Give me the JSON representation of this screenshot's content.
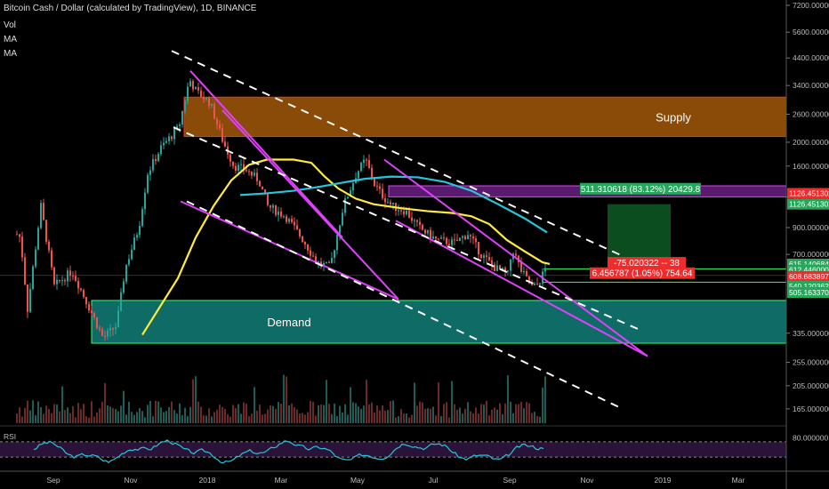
{
  "header": {
    "title": "Bitcoin Cash / Dollar (calculated by TradingView), 1D, BINANCE",
    "vol": "Vol",
    "ma1": "MA",
    "ma2": "MA"
  },
  "rsi_label": "RSI",
  "colors": {
    "up": "#26a69a",
    "down": "#ef5350",
    "ma_yellow": "#ffeb3b",
    "ma_cyan": "#26c6da",
    "trend": "#e040fb",
    "supply": "#8a4b08",
    "demand": "#0f6b66",
    "green_box": "#0b4d1f"
  },
  "chart_data": {
    "type": "candlestick",
    "title": "Bitcoin Cash / Dollar (calculated by TradingView), 1D, BINANCE",
    "yscale": "log",
    "ylim": [
      135,
      7200
    ],
    "y_ticks": [
      "7200.000000",
      "5600.000000",
      "4400.000000",
      "3400.000000",
      "2600.000000",
      "2000.000000",
      "1600.000000",
      "1200.000000",
      "900.000000",
      "700.000000",
      "335.000000",
      "255.000000",
      "205.000000",
      "165.000000"
    ],
    "x_ticks": [
      "Sep",
      "Nov",
      "2018",
      "Mar",
      "May",
      "Jul",
      "Sep",
      "Nov",
      "2019",
      "Mar"
    ],
    "price_tags": [
      {
        "label": "1126.451302",
        "color": "#ef2b2b"
      },
      {
        "label": "1126.451302",
        "color": "#26a65b"
      },
      {
        "label": "615.140684",
        "color": "#26a65b"
      },
      {
        "label": "612.446000",
        "color": "#26a65b"
      },
      {
        "label": "608.683897",
        "color": "#ef2b2b"
      },
      {
        "label": "540.120362",
        "color": "#26a65b"
      },
      {
        "label": "505.163370",
        "color": "#26a65b"
      }
    ],
    "zones": [
      {
        "label": "Supply",
        "low": 2110,
        "high": 3050
      },
      {
        "label": "Demand",
        "low": 305,
        "high": 455
      }
    ],
    "measure_boxes": [
      {
        "label": "511.310618 (83.12%) 20429.8",
        "color": "#26a65b"
      },
      {
        "label": "-75.020322 -- 38",
        "color": "#ef2b2b"
      },
      {
        "label": "6.456787 (1.05%) 754.64",
        "color": "#ef2b2b"
      }
    ],
    "rsi": {
      "name": "RSI",
      "level_label": "80.000000",
      "upper": 70,
      "lower": 30
    }
  }
}
